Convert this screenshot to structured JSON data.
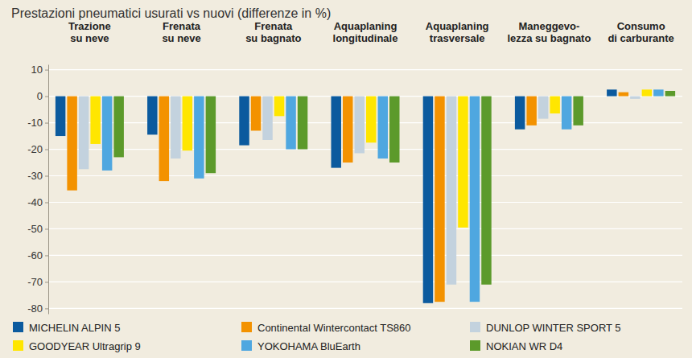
{
  "chart_data": {
    "type": "bar",
    "title": "Prestazioni pneumatici usurati vs nuovi (differenze in %)",
    "categories": [
      "Trazione\nsu neve",
      "Frenata\nsu neve",
      "Frenata\nsu bagnato",
      "Aquaplaning\nlongitudinale",
      "Aquaplaning\ntrasversale",
      "Maneggevo-\nlezza su bagnato",
      "Consumo\ndi carburante"
    ],
    "series": [
      {
        "name": "MICHELIN ALPIN 5",
        "color": "#0b5a9e",
        "values": [
          -15,
          -14.5,
          -18.5,
          -27,
          -78,
          -12.5,
          2.5
        ]
      },
      {
        "name": "Continental Wintercontact TS860",
        "color": "#f39200",
        "values": [
          -35.5,
          -32,
          -13,
          -25,
          -77.5,
          -11,
          1.5
        ]
      },
      {
        "name": "DUNLOP WINTER SPORT 5",
        "color": "#c3d2de",
        "values": [
          -27.5,
          -23.5,
          -16.5,
          -21.5,
          -71,
          -8.5,
          -1
        ]
      },
      {
        "name": "GOODYEAR Ultragrip 9",
        "color": "#ffe600",
        "values": [
          -18,
          -20.5,
          -7.5,
          -17.5,
          -49.5,
          -6.5,
          2.5
        ]
      },
      {
        "name": "YOKOHAMA BluEarth",
        "color": "#4fa7e0",
        "values": [
          -28,
          -31,
          -20,
          -23.5,
          -77.5,
          -12.5,
          2.5
        ]
      },
      {
        "name": "NOKIAN WR D4",
        "color": "#5c9a2b",
        "values": [
          -23,
          -29,
          -20,
          -25,
          -71,
          -11,
          2
        ]
      }
    ],
    "ylim": [
      -82,
      12
    ],
    "yticks": [
      10,
      0,
      -10,
      -20,
      -30,
      -40,
      -50,
      -60,
      -70,
      -80
    ],
    "grid": true,
    "legend": "bottom"
  }
}
